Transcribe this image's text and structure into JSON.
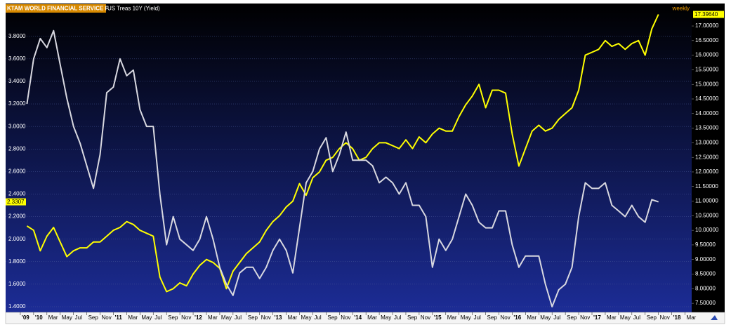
{
  "chart_data": {
    "type": "line",
    "title": "KTAM WORLD FINANCIAL SERVICE F",
    "periodicity": "weekly",
    "x": [
      "2009-12",
      "2010-01",
      "2010-02",
      "2010-03",
      "2010-04",
      "2010-05",
      "2010-06",
      "2010-07",
      "2010-08",
      "2010-09",
      "2010-10",
      "2010-11",
      "2010-12",
      "2011-01",
      "2011-02",
      "2011-03",
      "2011-04",
      "2011-05",
      "2011-06",
      "2011-07",
      "2011-08",
      "2011-09",
      "2011-10",
      "2011-11",
      "2011-12",
      "2012-01",
      "2012-02",
      "2012-03",
      "2012-04",
      "2012-05",
      "2012-06",
      "2012-07",
      "2012-08",
      "2012-09",
      "2012-10",
      "2012-11",
      "2012-12",
      "2013-01",
      "2013-02",
      "2013-03",
      "2013-04",
      "2013-05",
      "2013-06",
      "2013-07",
      "2013-08",
      "2013-09",
      "2013-10",
      "2013-11",
      "2013-12",
      "2014-01",
      "2014-02",
      "2014-03",
      "2014-04",
      "2014-05",
      "2014-06",
      "2014-07",
      "2014-08",
      "2014-09",
      "2014-10",
      "2014-11",
      "2014-12",
      "2015-01",
      "2015-02",
      "2015-03",
      "2015-04",
      "2015-05",
      "2015-06",
      "2015-07",
      "2015-08",
      "2015-09",
      "2015-10",
      "2015-11",
      "2015-12",
      "2016-01",
      "2016-02",
      "2016-03",
      "2016-04",
      "2016-05",
      "2016-06",
      "2016-07",
      "2016-08",
      "2016-09",
      "2016-10",
      "2016-11",
      "2016-12",
      "2017-01",
      "2017-02",
      "2017-03",
      "2017-04",
      "2017-05",
      "2017-06",
      "2017-07",
      "2017-08",
      "2017-09",
      "2017-10",
      "2017-11"
    ],
    "series": [
      {
        "name": "KTAM WORLD FINANCIAL SERVICE F",
        "color": "#ffff00",
        "axis": "y2",
        "values": [
          10.15,
          10.0,
          9.3,
          9.8,
          10.1,
          9.6,
          9.1,
          9.3,
          9.4,
          9.4,
          9.6,
          9.6,
          9.8,
          10.0,
          10.1,
          10.3,
          10.2,
          10.0,
          9.9,
          9.8,
          8.4,
          7.9,
          8.0,
          8.2,
          8.1,
          8.5,
          8.8,
          9.0,
          8.9,
          8.7,
          8.0,
          8.6,
          8.9,
          9.2,
          9.4,
          9.6,
          10.0,
          10.3,
          10.5,
          10.8,
          11.0,
          11.6,
          11.2,
          11.8,
          12.0,
          12.4,
          12.5,
          12.8,
          13.0,
          12.8,
          12.4,
          12.5,
          12.8,
          13.0,
          13.0,
          12.9,
          12.8,
          13.1,
          12.8,
          13.2,
          13.0,
          13.3,
          13.5,
          13.4,
          13.4,
          13.9,
          14.3,
          14.6,
          15.0,
          14.2,
          14.8,
          14.8,
          14.7,
          13.3,
          12.2,
          12.8,
          13.4,
          13.6,
          13.4,
          13.5,
          13.8,
          14.0,
          14.2,
          14.8,
          16.0,
          16.1,
          16.2,
          16.5,
          16.3,
          16.4,
          16.2,
          16.4,
          16.5,
          16.0,
          16.9,
          17.3964
        ],
        "value_labels": [
          null,
          null,
          null,
          null,
          null,
          null,
          null,
          null,
          null,
          null,
          null,
          null,
          null,
          null,
          null,
          null,
          null,
          null,
          null,
          null,
          null,
          null,
          null,
          null,
          null,
          null,
          null,
          null,
          null,
          null,
          null,
          null,
          null,
          null,
          null,
          null,
          null,
          null,
          null,
          null,
          null,
          null,
          null,
          null,
          null,
          null,
          null,
          null,
          null,
          null,
          null,
          null,
          null,
          null,
          null,
          null,
          null,
          null,
          null,
          null,
          null,
          null,
          null,
          null,
          null,
          null,
          null,
          null,
          null,
          null,
          null,
          null,
          null,
          null,
          null,
          null,
          null,
          null,
          null,
          null,
          null,
          null,
          null,
          null,
          null,
          null,
          null,
          null,
          null,
          null,
          null,
          null,
          null,
          null,
          null,
          "17.39640"
        ]
      },
      {
        "name": "US Treas 10Y (Yield)",
        "color": "#d8d8e0",
        "axis": "y",
        "values": [
          3.2,
          3.6,
          3.78,
          3.7,
          3.85,
          3.55,
          3.25,
          3.0,
          2.85,
          2.65,
          2.45,
          2.75,
          3.3,
          3.35,
          3.6,
          3.45,
          3.5,
          3.15,
          3.0,
          3.0,
          2.4,
          1.95,
          2.2,
          2.0,
          1.95,
          1.9,
          2.0,
          2.2,
          2.0,
          1.75,
          1.6,
          1.5,
          1.7,
          1.75,
          1.75,
          1.65,
          1.75,
          1.9,
          2.0,
          1.9,
          1.7,
          2.1,
          2.5,
          2.6,
          2.8,
          2.9,
          2.6,
          2.75,
          2.95,
          2.7,
          2.7,
          2.7,
          2.65,
          2.5,
          2.55,
          2.5,
          2.4,
          2.5,
          2.3,
          2.3,
          2.2,
          1.75,
          2.0,
          1.9,
          2.0,
          2.2,
          2.4,
          2.3,
          2.15,
          2.1,
          2.1,
          2.25,
          2.25,
          1.95,
          1.75,
          1.85,
          1.85,
          1.85,
          1.6,
          1.4,
          1.55,
          1.6,
          1.75,
          2.2,
          2.5,
          2.45,
          2.45,
          2.5,
          2.3,
          2.25,
          2.2,
          2.3,
          2.2,
          2.15,
          2.35,
          2.3307
        ]
      }
    ],
    "xlim": [
      "2009-09",
      "2018-04"
    ],
    "xticks": [
      {
        "value": "2009-11",
        "label": "'09"
      },
      {
        "value": "2010-01",
        "label": "'10"
      },
      {
        "value": "2010-03",
        "label": "Mar"
      },
      {
        "value": "2010-05",
        "label": "May"
      },
      {
        "value": "2010-07",
        "label": "Jul"
      },
      {
        "value": "2010-09",
        "label": "Sep"
      },
      {
        "value": "2010-11",
        "label": "Nov"
      },
      {
        "value": "2011-01",
        "label": "'11"
      },
      {
        "value": "2011-03",
        "label": "Mar"
      },
      {
        "value": "2011-05",
        "label": "May"
      },
      {
        "value": "2011-07",
        "label": "Jul"
      },
      {
        "value": "2011-09",
        "label": "Sep"
      },
      {
        "value": "2011-11",
        "label": "Nov"
      },
      {
        "value": "2012-01",
        "label": "'12"
      },
      {
        "value": "2012-03",
        "label": "Mar"
      },
      {
        "value": "2012-05",
        "label": "May"
      },
      {
        "value": "2012-07",
        "label": "Jul"
      },
      {
        "value": "2012-09",
        "label": "Sep"
      },
      {
        "value": "2012-11",
        "label": "Nov"
      },
      {
        "value": "2013-01",
        "label": "'13"
      },
      {
        "value": "2013-03",
        "label": "Mar"
      },
      {
        "value": "2013-05",
        "label": "May"
      },
      {
        "value": "2013-07",
        "label": "Jul"
      },
      {
        "value": "2013-09",
        "label": "Sep"
      },
      {
        "value": "2013-11",
        "label": "Nov"
      },
      {
        "value": "2014-01",
        "label": "'14"
      },
      {
        "value": "2014-03",
        "label": "Mar"
      },
      {
        "value": "2014-05",
        "label": "May"
      },
      {
        "value": "2014-07",
        "label": "Jul"
      },
      {
        "value": "2014-09",
        "label": "Sep"
      },
      {
        "value": "2014-11",
        "label": "Nov"
      },
      {
        "value": "2015-01",
        "label": "'15"
      },
      {
        "value": "2015-03",
        "label": "Mar"
      },
      {
        "value": "2015-05",
        "label": "May"
      },
      {
        "value": "2015-07",
        "label": "Jul"
      },
      {
        "value": "2015-09",
        "label": "Sep"
      },
      {
        "value": "2015-11",
        "label": "Nov"
      },
      {
        "value": "2016-01",
        "label": "'16"
      },
      {
        "value": "2016-03",
        "label": "Mar"
      },
      {
        "value": "2016-05",
        "label": "May"
      },
      {
        "value": "2016-07",
        "label": "Jul"
      },
      {
        "value": "2016-09",
        "label": "Sep"
      },
      {
        "value": "2016-11",
        "label": "Nov"
      },
      {
        "value": "2017-01",
        "label": "'17"
      },
      {
        "value": "2017-03",
        "label": "Mar"
      },
      {
        "value": "2017-05",
        "label": "May"
      },
      {
        "value": "2017-07",
        "label": "Jul"
      },
      {
        "value": "2017-09",
        "label": "Sep"
      },
      {
        "value": "2017-11",
        "label": "Nov"
      },
      {
        "value": "2018-01",
        "label": "'18"
      },
      {
        "value": "2018-03",
        "label": "Mar"
      }
    ],
    "ylim": [
      1.35,
      4.06
    ],
    "yticks": [
      {
        "value": 1.4,
        "label": "1.4000"
      },
      {
        "value": 1.6,
        "label": "1.6000"
      },
      {
        "value": 1.8,
        "label": "1.8000"
      },
      {
        "value": 2.0,
        "label": "2.0000"
      },
      {
        "value": 2.2,
        "label": "2.2000"
      },
      {
        "value": 2.4,
        "label": "2.4000"
      },
      {
        "value": 2.6,
        "label": "2.6000"
      },
      {
        "value": 2.8,
        "label": "2.8000"
      },
      {
        "value": 3.0,
        "label": "3.0000"
      },
      {
        "value": 3.2,
        "label": "3.2000"
      },
      {
        "value": 3.4,
        "label": "3.4000"
      },
      {
        "value": 3.6,
        "label": "3.6000"
      },
      {
        "value": 3.8,
        "label": "3.8000"
      }
    ],
    "y2lim": [
      7.19,
      17.65
    ],
    "y2ticks": [
      {
        "value": 7.5,
        "label": "7.50000"
      },
      {
        "value": 8.0,
        "label": "8.00000"
      },
      {
        "value": 8.5,
        "label": "8.50000"
      },
      {
        "value": 9.0,
        "label": "9.00000"
      },
      {
        "value": 9.5,
        "label": "9.50000"
      },
      {
        "value": 10.0,
        "label": "10.00000"
      },
      {
        "value": 10.5,
        "label": "10.50000"
      },
      {
        "value": 11.0,
        "label": "11.00000"
      },
      {
        "value": 11.5,
        "label": "11.50000"
      },
      {
        "value": 12.0,
        "label": "12.00000"
      },
      {
        "value": 12.5,
        "label": "12.50000"
      },
      {
        "value": 13.0,
        "label": "13.00000"
      },
      {
        "value": 13.5,
        "label": "13.50000"
      },
      {
        "value": 14.0,
        "label": "14.00000"
      },
      {
        "value": 14.5,
        "label": "14.50000"
      },
      {
        "value": 15.0,
        "label": "15.00000"
      },
      {
        "value": 15.5,
        "label": "15.50000"
      },
      {
        "value": 16.0,
        "label": "16.00000"
      },
      {
        "value": 16.5,
        "label": "16.50000"
      },
      {
        "value": 17.0,
        "label": "17.00000"
      }
    ],
    "grid": true
  }
}
